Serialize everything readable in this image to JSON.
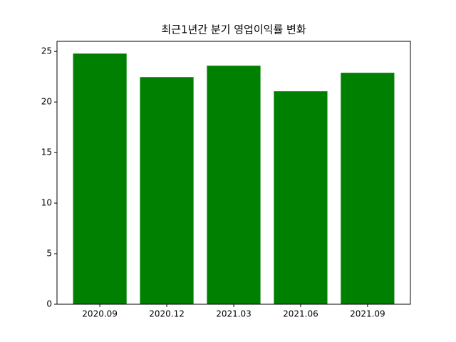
{
  "chart_data": {
    "type": "bar",
    "title": "최근1년간 분기 영업이익률 변화",
    "categories": [
      "2020.09",
      "2020.12",
      "2021.03",
      "2021.06",
      "2021.09"
    ],
    "values": [
      24.79,
      22.46,
      23.59,
      21.06,
      22.89
    ],
    "color": "#008000",
    "ylim": [
      0,
      26
    ],
    "yticks": [
      0,
      5,
      10,
      15,
      20,
      25
    ],
    "grid": false
  }
}
